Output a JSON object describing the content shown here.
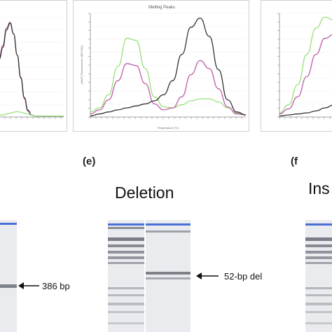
{
  "panel_labels": {
    "e": "(e)",
    "f": "(f"
  },
  "deletion_title": "Deletion",
  "insertion_title_partial": "Ins",
  "annotations": {
    "left_band": "386 bp",
    "deletion_band": "52-bp del"
  },
  "colors": {
    "curve_black": "#333333",
    "curve_pink": "#c05aa8",
    "curve_green": "#98e07a",
    "gel_lane": "#e9ebee",
    "marker_blue": "#4a6fd6",
    "band_dark": "#7d8189"
  },
  "chart_data": [
    {
      "type": "line",
      "title": "",
      "series": [
        {
          "color": "#c05aa8",
          "values": [
            0.62,
            0.74,
            0.92,
            0.98,
            0.86,
            0.64,
            0.4,
            0.19,
            0.06,
            0.02,
            0.01,
            0.01,
            0.01,
            0.01,
            0.01,
            0.01,
            0.01,
            0.01,
            0.01
          ]
        },
        {
          "color": "#333333",
          "values": [
            0.6,
            0.72,
            0.9,
            0.97,
            0.86,
            0.64,
            0.41,
            0.2,
            0.07,
            0.02,
            0.01,
            0.01,
            0.01,
            0.01,
            0.01,
            0.01,
            0.01,
            0.01,
            0.01
          ]
        },
        {
          "color": "#98e07a",
          "values": [
            0.02,
            0.02,
            0.03,
            0.04,
            0.05,
            0.055,
            0.05,
            0.04,
            0.03,
            0.02,
            0.01,
            0.01,
            0.01,
            0.01,
            0.01,
            0.01,
            0.01,
            0.01,
            0.01
          ]
        }
      ]
    },
    {
      "type": "line",
      "title": "Melting Peaks",
      "xlabel": "Temperature (°C)",
      "ylabel": "-(d/dT) Fluorescence (465-510)",
      "series": [
        {
          "color": "#98e07a",
          "values": [
            0.05,
            0.09,
            0.22,
            0.5,
            0.78,
            0.76,
            0.48,
            0.2,
            0.1,
            0.09,
            0.12,
            0.16,
            0.18,
            0.18,
            0.15,
            0.09,
            0.04,
            0.02
          ]
        },
        {
          "color": "#c05aa8",
          "values": [
            0.03,
            0.07,
            0.17,
            0.36,
            0.53,
            0.51,
            0.33,
            0.13,
            0.07,
            0.09,
            0.2,
            0.42,
            0.56,
            0.48,
            0.28,
            0.1,
            0.03,
            0.02
          ]
        },
        {
          "color": "#333333",
          "values": [
            0.01,
            0.03,
            0.05,
            0.07,
            0.09,
            0.11,
            0.13,
            0.16,
            0.22,
            0.36,
            0.62,
            0.89,
            0.98,
            0.8,
            0.47,
            0.17,
            0.05,
            0.02
          ]
        }
      ]
    },
    {
      "type": "line",
      "title": "",
      "series": [
        {
          "color": "#98e07a",
          "values": [
            0.04,
            0.12,
            0.32,
            0.62,
            0.88,
            0.99,
            0.96
          ]
        },
        {
          "color": "#c05aa8",
          "values": [
            0.03,
            0.08,
            0.2,
            0.4,
            0.62,
            0.78,
            0.82
          ]
        },
        {
          "color": "#333333",
          "values": [
            0.01,
            0.02,
            0.03,
            0.04,
            0.06,
            0.09,
            0.12
          ]
        }
      ]
    }
  ]
}
